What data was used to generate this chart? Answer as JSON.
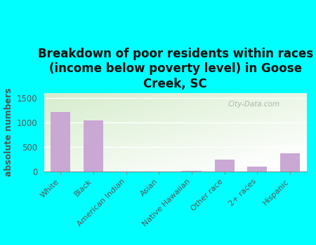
{
  "title": "Breakdown of poor residents within races\n(income below poverty level) in Goose\nCreek, SC",
  "categories": [
    "White",
    "Black",
    "American Indian",
    "Asian",
    "Native Hawaiian",
    "Other race",
    "2+ races",
    "Hispanic"
  ],
  "values": [
    1220,
    1050,
    0,
    0,
    10,
    245,
    95,
    370
  ],
  "bar_color": "#c9a8d4",
  "ylabel": "absolute numbers",
  "ylim": [
    0,
    1600
  ],
  "yticks": [
    0,
    500,
    1000,
    1500
  ],
  "bg_color": "#00ffff",
  "plot_bg_topleft": "#d6edcc",
  "plot_bg_bottomright": "#f5f5f0",
  "watermark": "City-Data.com",
  "title_fontsize": 12,
  "ylabel_fontsize": 9,
  "tick_label_color": "#555555",
  "ylabel_color": "#555555",
  "title_color": "#111111"
}
